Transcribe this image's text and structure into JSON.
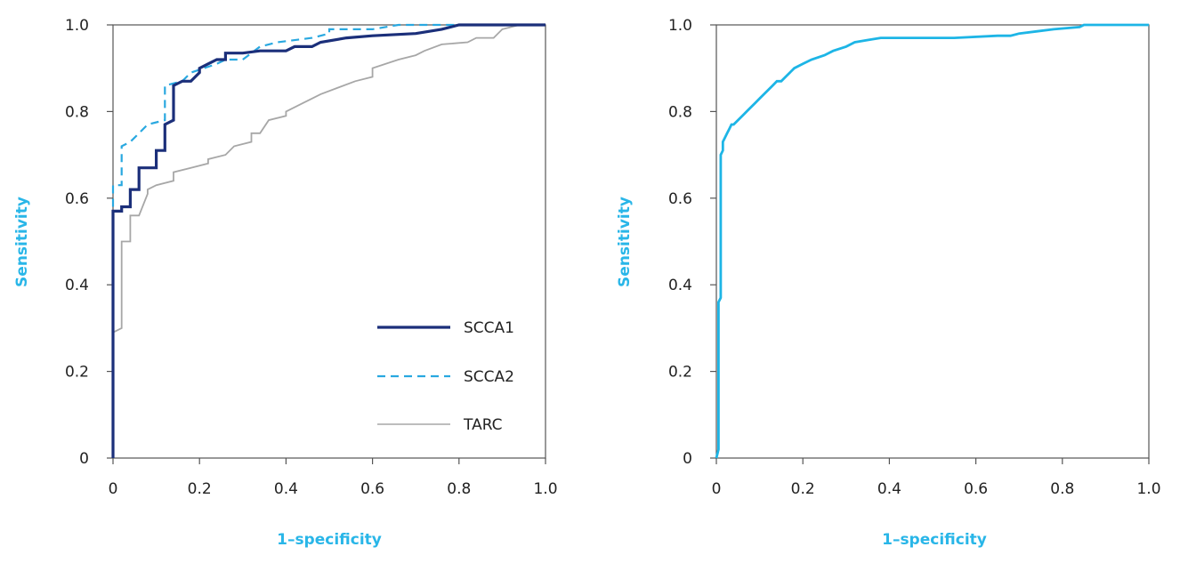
{
  "colors": {
    "SCCA1": "#1b2f7a",
    "SCCA2": "#29a8e0",
    "TARC": "#a7a7a7",
    "Combined": "#1db5e6",
    "axis_title": "#29b6e8"
  },
  "chart_data": [
    {
      "type": "line",
      "title": "",
      "xlabel": "1–specificity",
      "ylabel": "Sensitivity",
      "xlim": [
        0,
        1
      ],
      "ylim": [
        0,
        1
      ],
      "xticks": [
        "0",
        "0.2",
        "0.4",
        "0.6",
        "0.8",
        "1.0"
      ],
      "yticks": [
        "0",
        "0.2",
        "0.4",
        "0.6",
        "0.8",
        "1.0"
      ],
      "grid": false,
      "legend_position": "bottom-right",
      "series": [
        {
          "name": "SCCA1",
          "style": "solid-thick",
          "x": [
            0,
            0,
            0.02,
            0.02,
            0.04,
            0.04,
            0.06,
            0.06,
            0.1,
            0.1,
            0.12,
            0.12,
            0.14,
            0.14,
            0.16,
            0.18,
            0.2,
            0.2,
            0.22,
            0.24,
            0.26,
            0.26,
            0.3,
            0.34,
            0.4,
            0.42,
            0.46,
            0.48,
            0.54,
            0.6,
            0.7,
            0.76,
            0.8,
            1.0
          ],
          "y": [
            0,
            0.57,
            0.57,
            0.58,
            0.58,
            0.62,
            0.62,
            0.67,
            0.67,
            0.71,
            0.71,
            0.77,
            0.78,
            0.86,
            0.87,
            0.87,
            0.89,
            0.9,
            0.91,
            0.92,
            0.92,
            0.935,
            0.935,
            0.94,
            0.94,
            0.95,
            0.95,
            0.96,
            0.97,
            0.975,
            0.98,
            0.99,
            1.0,
            1.0
          ]
        },
        {
          "name": "SCCA2",
          "style": "dashed",
          "x": [
            0,
            0,
            0.02,
            0.02,
            0.04,
            0.06,
            0.08,
            0.12,
            0.12,
            0.16,
            0.18,
            0.24,
            0.26,
            0.3,
            0.34,
            0.38,
            0.46,
            0.5,
            0.5,
            0.6,
            0.66,
            0.8,
            1.0
          ],
          "y": [
            0.58,
            0.63,
            0.63,
            0.72,
            0.73,
            0.75,
            0.77,
            0.78,
            0.86,
            0.87,
            0.89,
            0.91,
            0.92,
            0.92,
            0.95,
            0.96,
            0.97,
            0.98,
            0.99,
            0.99,
            1.0,
            1.0,
            1.0
          ]
        },
        {
          "name": "TARC",
          "style": "solid-thin",
          "x": [
            0,
            0,
            0.02,
            0.02,
            0.04,
            0.04,
            0.06,
            0.08,
            0.08,
            0.1,
            0.14,
            0.14,
            0.18,
            0.22,
            0.22,
            0.26,
            0.28,
            0.32,
            0.32,
            0.34,
            0.36,
            0.4,
            0.4,
            0.44,
            0.46,
            0.48,
            0.56,
            0.6,
            0.6,
            0.66,
            0.7,
            0.72,
            0.76,
            0.82,
            0.84,
            0.88,
            0.9,
            0.94,
            1.0
          ],
          "y": [
            0,
            0.29,
            0.3,
            0.5,
            0.5,
            0.56,
            0.56,
            0.61,
            0.62,
            0.63,
            0.64,
            0.66,
            0.67,
            0.68,
            0.69,
            0.7,
            0.72,
            0.73,
            0.75,
            0.75,
            0.78,
            0.79,
            0.8,
            0.82,
            0.83,
            0.84,
            0.87,
            0.88,
            0.9,
            0.92,
            0.93,
            0.94,
            0.955,
            0.96,
            0.97,
            0.97,
            0.99,
            1.0,
            1.0
          ]
        }
      ]
    },
    {
      "type": "line",
      "title": "",
      "xlabel": "1–specificity",
      "ylabel": "Sensitivity",
      "xlim": [
        0,
        1
      ],
      "ylim": [
        0,
        1
      ],
      "xticks": [
        "0",
        "0.2",
        "0.4",
        "0.6",
        "0.8",
        "1.0"
      ],
      "yticks": [
        "0",
        "0.2",
        "0.4",
        "0.6",
        "0.8",
        "1.0"
      ],
      "grid": false,
      "series": [
        {
          "name": "",
          "style": "solid",
          "x": [
            0,
            0.005,
            0.005,
            0.01,
            0.01,
            0.015,
            0.015,
            0.02,
            0.025,
            0.03,
            0.035,
            0.04,
            0.05,
            0.06,
            0.07,
            0.08,
            0.09,
            0.1,
            0.11,
            0.12,
            0.13,
            0.14,
            0.15,
            0.16,
            0.17,
            0.18,
            0.2,
            0.22,
            0.25,
            0.27,
            0.3,
            0.32,
            0.35,
            0.38,
            0.45,
            0.55,
            0.65,
            0.68,
            0.7,
            0.74,
            0.78,
            0.84,
            0.85,
            1.0
          ],
          "y": [
            0,
            0.02,
            0.36,
            0.37,
            0.7,
            0.71,
            0.73,
            0.74,
            0.75,
            0.76,
            0.77,
            0.77,
            0.78,
            0.79,
            0.8,
            0.81,
            0.82,
            0.83,
            0.84,
            0.85,
            0.86,
            0.87,
            0.87,
            0.88,
            0.89,
            0.9,
            0.91,
            0.92,
            0.93,
            0.94,
            0.95,
            0.96,
            0.965,
            0.97,
            0.97,
            0.97,
            0.975,
            0.975,
            0.98,
            0.985,
            0.99,
            0.995,
            1.0,
            1.0
          ]
        }
      ]
    }
  ]
}
